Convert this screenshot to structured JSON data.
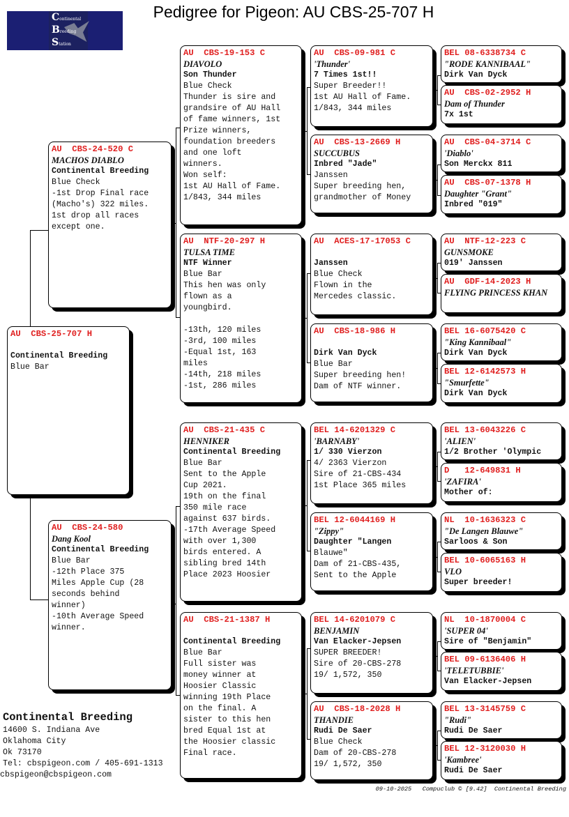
{
  "title": "Pedigree for Pigeon: AU  CBS-25-707 H",
  "logo": {
    "lines": [
      [
        "C",
        "ontinental"
      ],
      [
        "B",
        "reeding"
      ],
      [
        "S",
        "tation"
      ]
    ],
    "color": "#1b1f73"
  },
  "colors": {
    "ring_id": "#e02020",
    "box_shadow": "#000000"
  },
  "pedigree": {
    "subject": {
      "id": "AU  CBS-25-707 H",
      "name": "",
      "breeder": "Continental Breeding",
      "lines": [
        "Blue Bar"
      ]
    },
    "parents": [
      {
        "id": "AU  CBS-24-520 C",
        "name": "MACHOS DIABLO",
        "breeder": "Continental Breeding",
        "lines": [
          "Blue Check",
          "-1st Drop Final race",
          "(Macho's) 322 miles.",
          "1st drop all races",
          "except one."
        ]
      },
      {
        "id": "AU  CBS-24-580",
        "name": "Dang Kool",
        "breeder": "Continental Breeding",
        "lines": [
          "Blue Bar",
          "-12th Place 375",
          "Miles Apple Cup (28",
          "seconds behind",
          "winner)",
          "-10th Average Speed",
          "winner."
        ]
      }
    ],
    "grandparents": [
      {
        "id": "AU  CBS-19-153 C",
        "name": "DIAVOLO",
        "breeder": "Son Thunder",
        "lines": [
          "Blue Check",
          "Thunder is sire and",
          "grandsire of AU Hall",
          "of fame winners, 1st",
          "Prize winners,",
          "foundation breeders",
          "and one loft",
          "winners.",
          "Won self:",
          "1st AU Hall of Fame.",
          "1/843, 344 miles"
        ]
      },
      {
        "id": "AU  NTF-20-297 H",
        "name": "TULSA TIME",
        "breeder": "NTF Winner",
        "lines": [
          "Blue Bar",
          "This hen was only",
          "flown as a",
          "youngbird.",
          "",
          "-13th, 120 miles",
          "-3rd, 100 miles",
          "-Equal 1st, 163",
          "miles",
          "-14th, 218 miles",
          "-1st, 286 miles"
        ]
      },
      {
        "id": "AU  CBS-21-435 C",
        "name": "HENNIKER",
        "breeder": "Continental Breeding",
        "lines": [
          "Blue Bar",
          "Sent to the Apple",
          "Cup 2021.",
          "19th on the final",
          "350 mile race",
          "against 637 birds.",
          "-17th Average Speed",
          "with over 1,300",
          "birds entered. A",
          "sibling bred 14th",
          "Place 2023 Hoosier"
        ]
      },
      {
        "id": "AU  CBS-21-1387 H",
        "name": "",
        "breeder": "Continental Breeding",
        "lines": [
          "Blue Bar",
          "Full sister was",
          "money winner at",
          "Hoosier Classic",
          "winning 19th Place",
          "on the final. A",
          "sister to this hen",
          "bred Equal 1st at",
          "the Hoosier classic",
          "Final race."
        ]
      }
    ],
    "great_grandparents": [
      {
        "id": "AU  CBS-09-981 C",
        "name": "'Thunder'",
        "breeder": "7 Times 1st!!",
        "lines": [
          "Super Breeder!!",
          "1st AU Hall of Fame.",
          "1/843, 344 miles"
        ]
      },
      {
        "id": "AU  CBS-13-2669 H",
        "name": "SUCCUBUS",
        "breeder": "Inbred \"Jade\"",
        "lines": [
          "Janssen",
          "Super breeding hen,",
          "grandmother of Money"
        ]
      },
      {
        "id": "AU  ACES-17-17053 C",
        "name": "",
        "breeder": "Janssen",
        "lines": [
          "Blue Check",
          "Flown in the",
          "Mercedes classic."
        ]
      },
      {
        "id": "AU  CBS-18-986 H",
        "name": "",
        "breeder": "Dirk Van Dyck",
        "lines": [
          "Blue Bar",
          "Super breeding hen!",
          "Dam of NTF winner."
        ]
      },
      {
        "id": "BEL 14-6201329 C",
        "name": "'BARNABY'",
        "breeder": "1/ 330 Vierzon",
        "lines": [
          "4/ 2363 Vierzon",
          "Sire of 21-CBS-434",
          "1st Place 365 miles"
        ]
      },
      {
        "id": "BEL 12-6044169 H",
        "name": "\"Zippy\"",
        "breeder": "Daughter \"Langen",
        "lines": [
          "Blauwe\"",
          "Dam of 21-CBS-435,",
          "Sent to the Apple"
        ]
      },
      {
        "id": "BEL 14-6201079 C",
        "name": "BENJAMIN",
        "breeder": "Van Elacker-Jepsen",
        "lines": [
          "SUPER BREEDER!",
          "Sire of 20-CBS-278",
          "19/ 1,572, 350"
        ]
      },
      {
        "id": "AU  CBS-18-2028 H",
        "name": "THANDIE",
        "breeder": "Rudi De Saer",
        "lines": [
          "Blue Check",
          "Dam of 20-CBS-278",
          "19/ 1,572, 350"
        ]
      }
    ],
    "great_great_grandparents": [
      {
        "id": "BEL 08-6338734 C",
        "name": "\"RODE KANNIBAAL\"",
        "breeder": "Dirk Van Dyck",
        "lines": []
      },
      {
        "id": "AU  CBS-02-2952 H",
        "name": "Dam of Thunder",
        "breeder": "7x 1st",
        "lines": []
      },
      {
        "id": "AU  CBS-04-3714 C",
        "name": "'Diablo'",
        "breeder": "Son Merckx 811",
        "lines": []
      },
      {
        "id": "AU  CBS-07-1378 H",
        "name": "Daughter \"Grant\"",
        "breeder": "Inbred \"019\"",
        "lines": []
      },
      {
        "id": "AU  NTF-12-223 C",
        "name": "GUNSMOKE",
        "breeder": "019' Janssen",
        "lines": []
      },
      {
        "id": "AU  GDF-14-2023 H",
        "name": "FLYING PRINCESS KHAN",
        "breeder": "",
        "lines": []
      },
      {
        "id": "BEL 16-6075420 C",
        "name": "\"King Kannibaal\"",
        "breeder": "Dirk Van Dyck",
        "lines": []
      },
      {
        "id": "BEL 12-6142573 H",
        "name": "\"Smurfette\"",
        "breeder": "Dirk Van Dyck",
        "lines": []
      },
      {
        "id": "BEL 13-6043226 C",
        "name": "'ALIEN'",
        "breeder": "1/2 Brother 'Olympic",
        "lines": []
      },
      {
        "id": "D   12-649831 H",
        "name": "'ZAFIRA'",
        "breeder": "Mother of:",
        "lines": []
      },
      {
        "id": "NL  10-1636323 C",
        "name": "\"De Langen Blauwe\"",
        "breeder": "Sarloos & Son",
        "lines": []
      },
      {
        "id": "BEL 10-6065163 H",
        "name": "VLO",
        "breeder": "Super breeder!",
        "lines": []
      },
      {
        "id": "NL  10-1870004 C",
        "name": "'SUPER 04'",
        "breeder": "Sire of \"Benjamin\"",
        "lines": []
      },
      {
        "id": "BEL 09-6136406 H",
        "name": "'TELETUBBIE'",
        "breeder": "Van Elacker-Jepsen",
        "lines": []
      },
      {
        "id": "BEL 13-3145759 C",
        "name": "\"Rudi\"",
        "breeder": "Rudi De Saer",
        "lines": []
      },
      {
        "id": "BEL 12-3120030 H",
        "name": "'Kambree'",
        "breeder": "Rudi De Saer",
        "lines": []
      }
    ]
  },
  "address": {
    "company": "Continental Breeding",
    "lines": [
      "14600 S. Indiana Ave",
      "Oklahoma City",
      "Ok 73170",
      "Tel: cbspigeon.com / 405-691-1313"
    ],
    "email": "cbspigeon@cbspigeon.com"
  },
  "footer": {
    "date": "09-10-2025",
    "software": "Compuclub © [9.42]",
    "owner": "Continental Breeding"
  }
}
